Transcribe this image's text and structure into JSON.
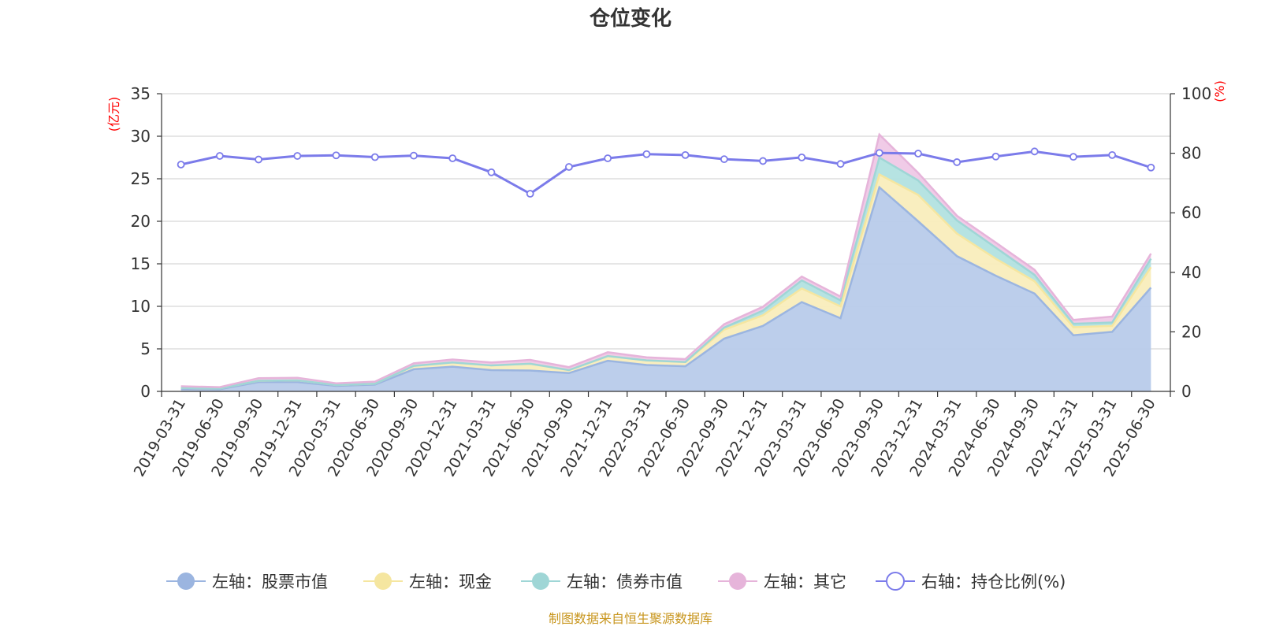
{
  "chart_data": {
    "type": "area",
    "title": "仓位变化",
    "left_axis": {
      "unit": "(亿元)",
      "range": [
        0,
        35
      ],
      "ticks": [
        0,
        5,
        10,
        15,
        20,
        25,
        30,
        35
      ]
    },
    "right_axis": {
      "unit": "(%)",
      "range": [
        0,
        100
      ],
      "ticks": [
        0,
        20,
        40,
        60,
        80,
        100
      ]
    },
    "categories": [
      "2019-03-31",
      "2019-06-30",
      "2019-09-30",
      "2019-12-31",
      "2020-03-31",
      "2020-06-30",
      "2020-09-30",
      "2020-12-31",
      "2021-03-31",
      "2021-06-30",
      "2021-09-30",
      "2021-12-31",
      "2022-03-31",
      "2022-06-30",
      "2022-09-30",
      "2022-12-31",
      "2023-03-31",
      "2023-06-30",
      "2023-09-30",
      "2023-12-31",
      "2024-03-31",
      "2024-06-30",
      "2024-09-30",
      "2024-12-31",
      "2025-03-31",
      "2025-06-30"
    ],
    "stacked_series": [
      {
        "name": "左轴：股票市值",
        "color": "#9bb5e0",
        "fill": "#b8cbea",
        "values": [
          0.3,
          0.25,
          1.1,
          1.1,
          0.65,
          0.8,
          2.6,
          2.9,
          2.5,
          2.45,
          2.15,
          3.6,
          3.1,
          2.95,
          6.2,
          7.7,
          10.5,
          8.6,
          24.0,
          20.0,
          15.9,
          13.6,
          11.5,
          6.6,
          7.0,
          12.2
        ]
      },
      {
        "name": "左轴：现金",
        "color": "#f5e6a0",
        "fill": "#f9edbc",
        "values": [
          0.1,
          0.1,
          0.15,
          0.2,
          0.1,
          0.1,
          0.4,
          0.5,
          0.55,
          0.8,
          0.35,
          0.55,
          0.55,
          0.5,
          1.05,
          1.25,
          1.6,
          1.4,
          1.5,
          3.1,
          2.65,
          2.0,
          1.45,
          0.95,
          0.7,
          2.4
        ]
      },
      {
        "name": "左轴：债券市值",
        "color": "#9fd6d6",
        "fill": "#b2e1e0",
        "values": [
          0,
          0,
          0,
          0,
          0,
          0,
          0,
          0,
          0,
          0,
          0,
          0,
          0,
          0,
          0.25,
          0.55,
          0.95,
          0.7,
          2.0,
          1.7,
          1.55,
          1.3,
          0.75,
          0.4,
          0.4,
          1.0
        ]
      },
      {
        "name": "左轴：其它",
        "color": "#e6b4da",
        "fill": "#efc8e6",
        "values": [
          0.2,
          0.15,
          0.3,
          0.3,
          0.2,
          0.25,
          0.3,
          0.35,
          0.35,
          0.45,
          0.35,
          0.45,
          0.35,
          0.35,
          0.4,
          0.45,
          0.45,
          0.45,
          2.7,
          0.9,
          0.55,
          0.6,
          0.6,
          0.45,
          0.7,
          0.6
        ]
      }
    ],
    "line_series": {
      "name": "右轴：持仓比例(%)",
      "color": "#7b7bea",
      "values": [
        76.2,
        79.1,
        77.9,
        79.1,
        79.3,
        78.7,
        79.2,
        78.3,
        73.6,
        66.4,
        75.4,
        78.3,
        79.7,
        79.4,
        78.0,
        77.4,
        78.6,
        76.4,
        80.1,
        79.9,
        77.0,
        78.9,
        80.6,
        78.8,
        79.4,
        75.2
      ]
    },
    "grid": true,
    "legend_position": "bottom"
  },
  "footer": {
    "source_text": "制图数据来自恒生聚源数据库"
  }
}
